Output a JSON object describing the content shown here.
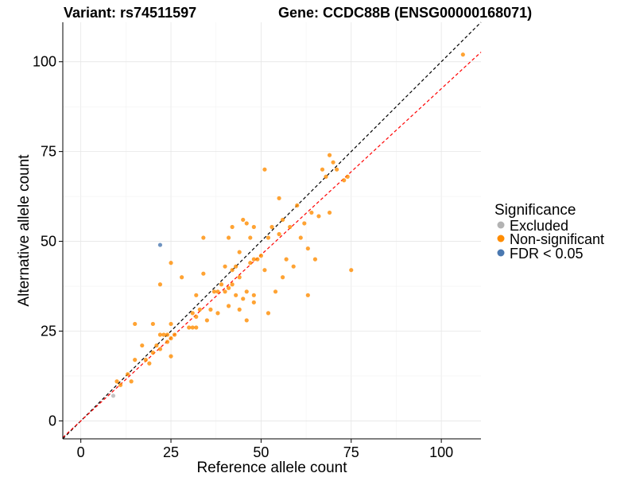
{
  "titles": {
    "variant": "Variant: rs74511597",
    "gene": "Gene: CCDC88B (ENSG00000168071)"
  },
  "chart_data": {
    "type": "scatter",
    "xlabel": "Reference allele count",
    "ylabel": "Alternative allele count",
    "xlim": [
      -5,
      111
    ],
    "ylim": [
      -5,
      111
    ],
    "x_ticks": [
      0,
      25,
      50,
      75,
      100
    ],
    "y_ticks": [
      0,
      25,
      50,
      75,
      100
    ],
    "x_tick_labels": [
      "0",
      "25",
      "50",
      "75",
      "100"
    ],
    "y_tick_labels": [
      "0",
      "25",
      "50",
      "75",
      "100"
    ],
    "grid": true,
    "reference_lines": [
      {
        "style": "dashed",
        "color": "#000000",
        "slope": 1.0,
        "intercept": 0
      },
      {
        "style": "dashed",
        "color": "#ff0000",
        "slope": 0.925,
        "intercept": 0
      }
    ],
    "legend": {
      "title": "Significance",
      "position": "right",
      "entries": [
        {
          "label": "Excluded",
          "color": "#b3b3b3"
        },
        {
          "label": "Non-significant",
          "color": "#ff8c00"
        },
        {
          "label": "FDR < 0.05",
          "color": "#4a78b0"
        }
      ]
    },
    "series": [
      {
        "name": "Excluded",
        "color": "#b3b3b3",
        "points": [
          [
            9,
            7
          ]
        ]
      },
      {
        "name": "Non-significant",
        "color": "#ff8c00",
        "points": [
          [
            10,
            11
          ],
          [
            11,
            10
          ],
          [
            13,
            13
          ],
          [
            14,
            11
          ],
          [
            15,
            17
          ],
          [
            15,
            27
          ],
          [
            17,
            21
          ],
          [
            18,
            17
          ],
          [
            19,
            16
          ],
          [
            20,
            19
          ],
          [
            20,
            27
          ],
          [
            21,
            21
          ],
          [
            22,
            20
          ],
          [
            22,
            24
          ],
          [
            22,
            38
          ],
          [
            23,
            24
          ],
          [
            24,
            22
          ],
          [
            24,
            24
          ],
          [
            25,
            18
          ],
          [
            25,
            23
          ],
          [
            25,
            27
          ],
          [
            25,
            44
          ],
          [
            26,
            24
          ],
          [
            28,
            40
          ],
          [
            30,
            26
          ],
          [
            31,
            26
          ],
          [
            31,
            30
          ],
          [
            32,
            26
          ],
          [
            32,
            29
          ],
          [
            32,
            35
          ],
          [
            33,
            31
          ],
          [
            34,
            41
          ],
          [
            34,
            51
          ],
          [
            35,
            28
          ],
          [
            36,
            31
          ],
          [
            37,
            36
          ],
          [
            38,
            30
          ],
          [
            38,
            36
          ],
          [
            39,
            38
          ],
          [
            40,
            36
          ],
          [
            40,
            43
          ],
          [
            41,
            32
          ],
          [
            41,
            37
          ],
          [
            41,
            51
          ],
          [
            42,
            38
          ],
          [
            42,
            42
          ],
          [
            42,
            54
          ],
          [
            43,
            35
          ],
          [
            43,
            43
          ],
          [
            44,
            31
          ],
          [
            44,
            40
          ],
          [
            44,
            47
          ],
          [
            45,
            34
          ],
          [
            45,
            56
          ],
          [
            46,
            28
          ],
          [
            46,
            36
          ],
          [
            46,
            55
          ],
          [
            47,
            44
          ],
          [
            47,
            51
          ],
          [
            48,
            33
          ],
          [
            48,
            35
          ],
          [
            48,
            45
          ],
          [
            48,
            54
          ],
          [
            49,
            45
          ],
          [
            50,
            46
          ],
          [
            51,
            42
          ],
          [
            51,
            70
          ],
          [
            52,
            30
          ],
          [
            52,
            51
          ],
          [
            53,
            54
          ],
          [
            54,
            36
          ],
          [
            55,
            52
          ],
          [
            55,
            62
          ],
          [
            56,
            40
          ],
          [
            56,
            56
          ],
          [
            57,
            45
          ],
          [
            58,
            54
          ],
          [
            59,
            43
          ],
          [
            60,
            60
          ],
          [
            61,
            51
          ],
          [
            62,
            55
          ],
          [
            63,
            35
          ],
          [
            63,
            48
          ],
          [
            64,
            58
          ],
          [
            65,
            45
          ],
          [
            66,
            57
          ],
          [
            67,
            70
          ],
          [
            68,
            68
          ],
          [
            69,
            58
          ],
          [
            69,
            74
          ],
          [
            70,
            72
          ],
          [
            71,
            70
          ],
          [
            73,
            67
          ],
          [
            74,
            68
          ],
          [
            75,
            42
          ],
          [
            106,
            102
          ]
        ]
      },
      {
        "name": "FDR < 0.05",
        "color": "#4a78b0",
        "points": [
          [
            22,
            49
          ]
        ]
      }
    ]
  }
}
